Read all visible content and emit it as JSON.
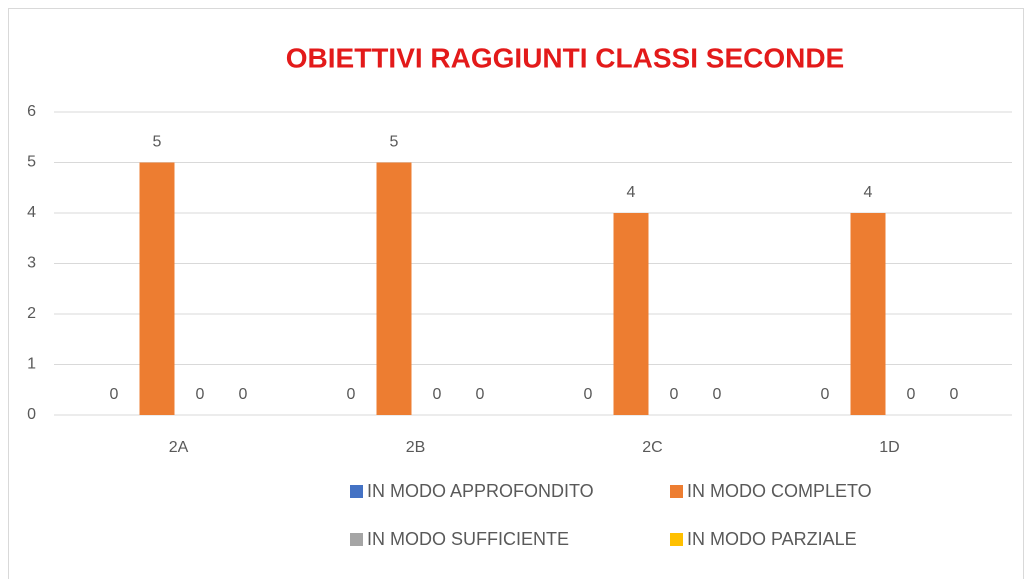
{
  "chart_data": {
    "type": "bar",
    "title": "OBIETTIVI RAGGIUNTI CLASSI SECONDE",
    "categories": [
      "2A",
      "2B",
      "2C",
      "1D"
    ],
    "series": [
      {
        "name": "IN MODO APPROFONDITO",
        "color": "#4472c4",
        "values": [
          0,
          0,
          0,
          0
        ]
      },
      {
        "name": "IN MODO COMPLETO",
        "color": "#ed7d31",
        "values": [
          5,
          5,
          4,
          4
        ]
      },
      {
        "name": "IN MODO SUFFICIENTE",
        "color": "#a5a5a5",
        "values": [
          0,
          0,
          0,
          0
        ]
      },
      {
        "name": "IN MODO PARZIALE",
        "color": "#ffc000",
        "values": [
          0,
          0,
          0,
          0
        ]
      }
    ],
    "ylim": [
      0,
      6
    ],
    "yticks": [
      0,
      1,
      2,
      3,
      4,
      5,
      6
    ],
    "grid": true,
    "legend": "bottom"
  }
}
